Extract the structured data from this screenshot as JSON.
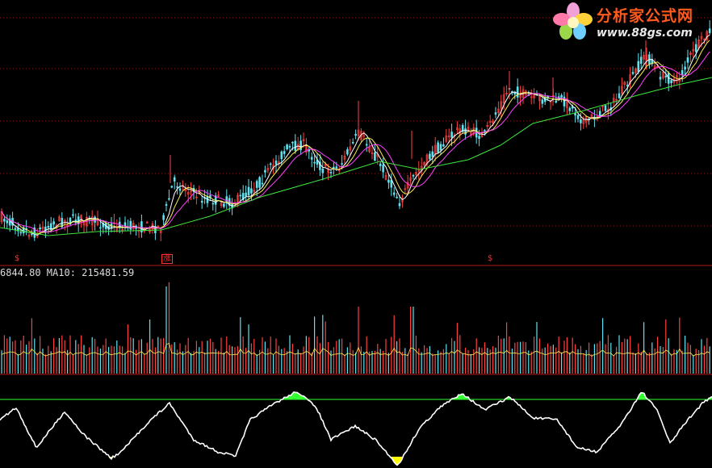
{
  "logo": {
    "title": "分析家公式网",
    "url": "www.88gs.com"
  },
  "volume_panel": {
    "label": "6844.80  MA10: 215481.59"
  },
  "signals": [
    {
      "text": "$",
      "style": "dollar"
    },
    {
      "text": "涨",
      "style": "box"
    },
    {
      "text": "$",
      "style": "dollar"
    }
  ],
  "colors": {
    "background": "#000000",
    "grid": "#8a1a1a",
    "candle_up": "#ff4040",
    "candle_down": "#5fe3f0",
    "ma_white": "#ffffff",
    "ma_yellow": "#ffee55",
    "ma_magenta": "#ff40ff",
    "ma_green": "#3ee63e",
    "oscillator": "#ffffff",
    "osc_overbought": "#33ff33",
    "osc_oversold": "#ffff00",
    "logo_orange": "#ff5a1e"
  },
  "icons": {
    "logo": "flower-icon"
  }
}
